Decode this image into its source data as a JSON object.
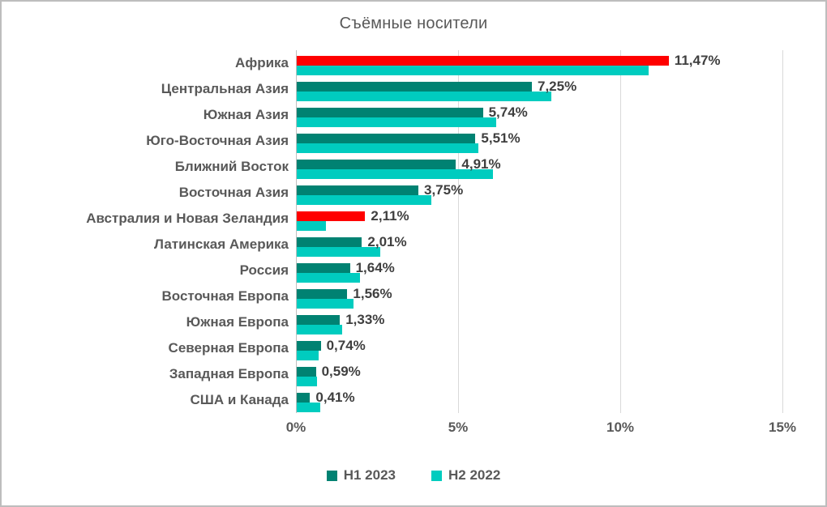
{
  "chart_data": {
    "type": "bar",
    "orientation": "horizontal",
    "title": "Съёмные носители",
    "categories": [
      "Африка",
      "Центральная Азия",
      "Южная Азия",
      "Юго-Восточная Азия",
      "Ближний Восток",
      "Восточная Азия",
      "Австралия и Новая Зеландия",
      "Латинская Америка",
      "Россия",
      "Восточная Европа",
      "Южная Европа",
      "Северная Европа",
      "Западная Европа",
      "США и Канада"
    ],
    "series": [
      {
        "name": "H1 2023",
        "color": "#008272",
        "values": [
          11.47,
          7.25,
          5.74,
          5.51,
          4.91,
          3.75,
          2.11,
          2.01,
          1.64,
          1.56,
          1.33,
          0.74,
          0.59,
          0.41
        ],
        "data_labels": [
          "11,47%",
          "7,25%",
          "5,74%",
          "5,51%",
          "4,91%",
          "3,75%",
          "2,11%",
          "2,01%",
          "1,64%",
          "1,56%",
          "1,33%",
          "0,74%",
          "0,59%",
          "0,41%"
        ]
      },
      {
        "name": "H2 2022",
        "color": "#00ccbf",
        "values": [
          10.85,
          7.85,
          6.15,
          5.6,
          6.05,
          4.15,
          0.9,
          2.58,
          1.95,
          1.75,
          1.4,
          0.68,
          0.62,
          0.72
        ]
      }
    ],
    "highlight": {
      "indices": [
        0,
        6
      ],
      "color": "#ff0000"
    },
    "x_axis": {
      "ticks": [
        "0%",
        "5%",
        "10%",
        "15%"
      ],
      "values": [
        0,
        5,
        10,
        15
      ],
      "max": 16
    },
    "grid": true,
    "legend_position": "bottom",
    "colors": {
      "title_text": "#595959",
      "label_text": "#3f3f3f",
      "gridline": "#d9d9d9",
      "axis_line": "#bfbfbf",
      "frame_border": "#bdbdbd"
    }
  }
}
